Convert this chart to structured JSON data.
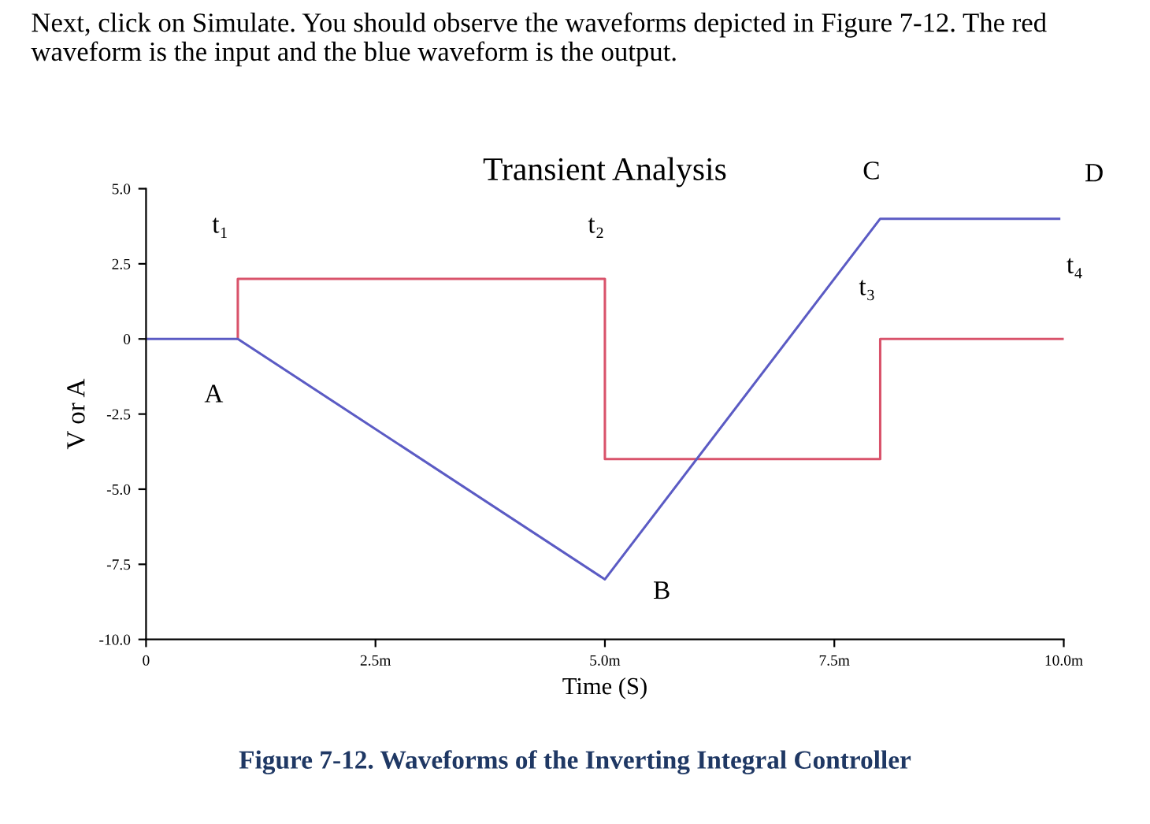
{
  "chart_data": {
    "type": "line",
    "title": "Transient Analysis",
    "xlabel": "Time (S)",
    "ylabel": "V or A",
    "xlim": [
      0,
      10
    ],
    "ylim": [
      -10,
      5
    ],
    "xticks": [
      0,
      {
        "value": 2.5,
        "label": "2.5m"
      },
      {
        "value": 5,
        "label": "5.0m"
      },
      {
        "value": 7.5,
        "label": "7.5m"
      },
      {
        "value": 10,
        "label": "10.0m"
      }
    ],
    "yticks": [
      {
        "value": 5,
        "label": "5.0"
      },
      {
        "value": 2.5,
        "label": "2.5"
      },
      0,
      {
        "value": -2.5,
        "label": "-2.5"
      },
      {
        "value": -5,
        "label": "-5.0"
      },
      {
        "value": -7.5,
        "label": "-7.5"
      },
      {
        "value": -10,
        "label": "-10.0"
      }
    ],
    "grid": false,
    "marker": "none",
    "line_style": "solid",
    "series": [
      {
        "color": "#d9536b",
        "x": [
          1,
          1,
          5,
          5,
          8,
          8,
          10
        ],
        "values": [
          0,
          2,
          2,
          -4,
          -4,
          0,
          0
        ]
      },
      {
        "color": "#5b5bc4",
        "x": [
          0,
          1,
          5,
          8,
          9.95
        ],
        "values": [
          0,
          0,
          -8,
          4,
          4
        ]
      }
    ],
    "annotations": [
      "Next, click on Simulate. You should observe the waveforms depicted in Figure 7-12. The red waveform is the input and the blue waveform is the output.",
      "Figure 7-12. Waveforms of the Inverting Integral Controller",
      {
        "text": "t₁",
        "x": 1,
        "y": 2
      },
      {
        "text": "A",
        "x": 1,
        "y": 0
      },
      {
        "text": "t₂",
        "x": 5,
        "y": 2
      },
      {
        "text": "B",
        "x": 5,
        "y": -8
      },
      {
        "text": "C",
        "x": 8,
        "y": 4
      },
      {
        "text": "D",
        "x": 9.95,
        "y": 4
      },
      {
        "text": "t₃",
        "x": 8,
        "y": 0
      },
      {
        "text": "t₄",
        "x": 10,
        "y": 0
      }
    ]
  }
}
